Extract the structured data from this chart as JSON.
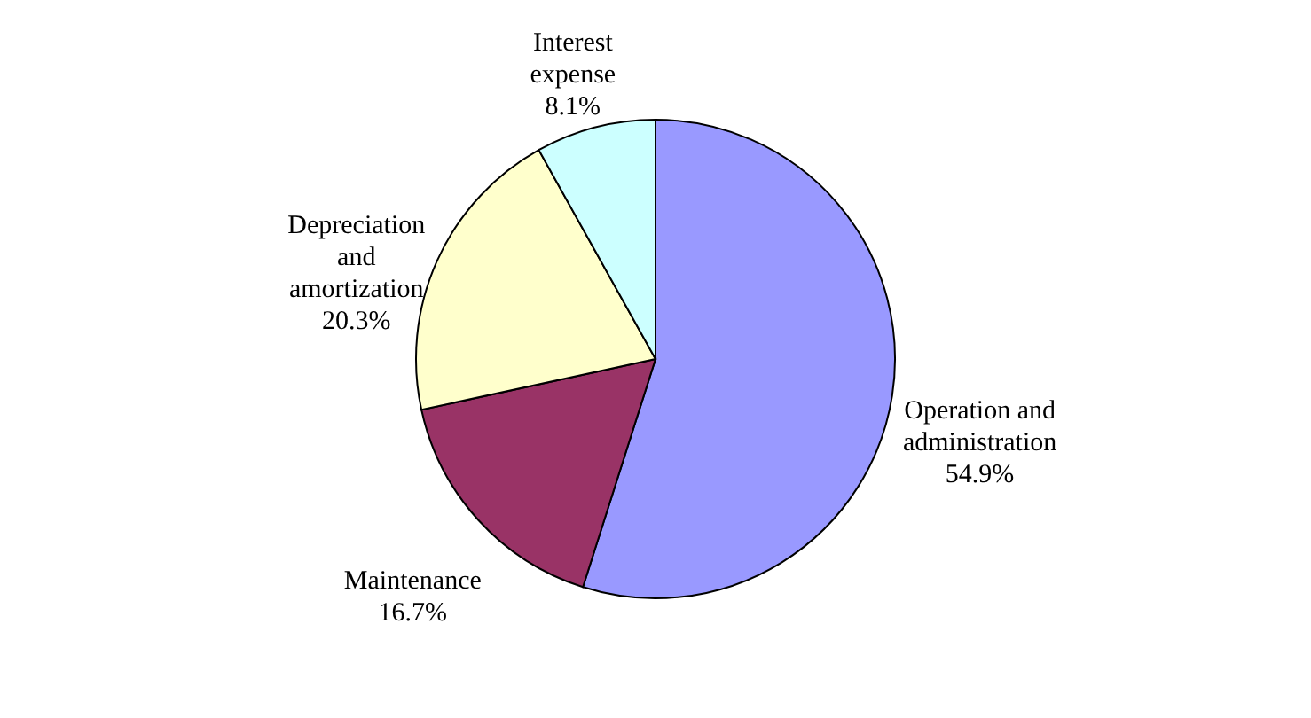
{
  "chart_data": {
    "type": "pie",
    "categories": [
      "Operation and administration",
      "Maintenance",
      "Depreciation and amortization",
      "Interest expense"
    ],
    "values": [
      54.9,
      16.7,
      20.3,
      8.1
    ],
    "value_labels": [
      "54.9%",
      "16.7%",
      "20.3%",
      "8.1%"
    ],
    "colors": [
      "#9999ff",
      "#993366",
      "#ffffcc",
      "#ccffff"
    ],
    "legend": false
  }
}
